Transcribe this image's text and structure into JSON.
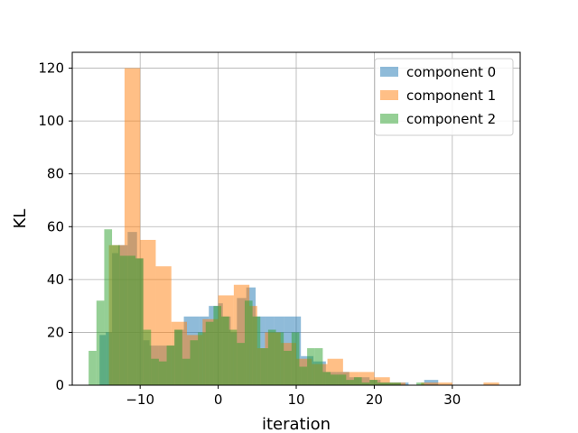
{
  "chart_data": {
    "type": "histogram",
    "title": "",
    "xlabel": "iteration",
    "ylabel": "KL",
    "xlim": [
      -18.7,
      38.7
    ],
    "ylim": [
      0,
      126
    ],
    "xticks": [
      -10,
      0,
      10,
      20,
      30
    ],
    "xtick_labels": [
      "−10",
      "0",
      "10",
      "20",
      "30"
    ],
    "yticks": [
      0,
      20,
      40,
      60,
      80,
      100,
      120
    ],
    "grid": true,
    "legend_position": "top-right",
    "series": [
      {
        "name": "component 0",
        "color": "#1f77b4",
        "opacity": 0.5,
        "bins": [
          [
            -16,
            -15.2,
            0
          ],
          [
            -15.2,
            -14.4,
            19
          ],
          [
            -14.4,
            -13.6,
            20
          ],
          [
            -13.6,
            -12.8,
            50
          ],
          [
            -12.8,
            -11.6,
            53
          ],
          [
            -11.6,
            -10.4,
            58
          ],
          [
            -10.4,
            -9.6,
            48
          ],
          [
            -9.6,
            -8.8,
            17
          ],
          [
            -8.8,
            -7.6,
            15
          ],
          [
            -7.6,
            -6.6,
            15
          ],
          [
            -6.6,
            -5.6,
            15
          ],
          [
            -5.6,
            -4.4,
            21
          ],
          [
            -4.4,
            -2.4,
            26
          ],
          [
            -2.4,
            -1.2,
            26
          ],
          [
            -1.2,
            0,
            30
          ],
          [
            0,
            0.6,
            31
          ],
          [
            0.6,
            1.6,
            26
          ],
          [
            1.6,
            2.4,
            20
          ],
          [
            2.4,
            3.6,
            33
          ],
          [
            3.6,
            4.8,
            37
          ],
          [
            4.8,
            6,
            26
          ],
          [
            6,
            7.2,
            26
          ],
          [
            7.2,
            8.4,
            26
          ],
          [
            8.4,
            9.8,
            26
          ],
          [
            9.8,
            10.6,
            26
          ],
          [
            10.6,
            12.2,
            11
          ],
          [
            12.2,
            13.8,
            9
          ],
          [
            13.8,
            15.2,
            5
          ],
          [
            15.2,
            16.8,
            5
          ],
          [
            16.8,
            18.2,
            3
          ],
          [
            18.2,
            19.4,
            3
          ],
          [
            19.4,
            20.8,
            2
          ],
          [
            20.8,
            22.2,
            1
          ],
          [
            22.2,
            24.4,
            1
          ],
          [
            24.4,
            26.4,
            0
          ],
          [
            26.4,
            28.2,
            2
          ]
        ]
      },
      {
        "name": "component 1",
        "color": "#ff7f0e",
        "opacity": 0.5,
        "bins": [
          [
            -14,
            -12,
            53
          ],
          [
            -12,
            -10,
            120
          ],
          [
            -10,
            -8,
            55
          ],
          [
            -8,
            -6,
            45
          ],
          [
            -6,
            -4,
            24
          ],
          [
            -4,
            -2,
            19
          ],
          [
            -2,
            0,
            25
          ],
          [
            0,
            2,
            34
          ],
          [
            2,
            4,
            38
          ],
          [
            4,
            5,
            30
          ],
          [
            5,
            6,
            14
          ],
          [
            6,
            8,
            20
          ],
          [
            8,
            10,
            16
          ],
          [
            10,
            12,
            10
          ],
          [
            12,
            14,
            8
          ],
          [
            14,
            16,
            10
          ],
          [
            16,
            18,
            5
          ],
          [
            18,
            20,
            5
          ],
          [
            20,
            22,
            3
          ],
          [
            22,
            24,
            1
          ],
          [
            24,
            26,
            0
          ],
          [
            26,
            28,
            1
          ],
          [
            28,
            30,
            1
          ],
          [
            30,
            32,
            0
          ],
          [
            32,
            34,
            0
          ],
          [
            34,
            36,
            1
          ]
        ]
      },
      {
        "name": "component 2",
        "color": "#2ca02c",
        "opacity": 0.5,
        "bins": [
          [
            -16.6,
            -15.6,
            13
          ],
          [
            -15.6,
            -14.6,
            32
          ],
          [
            -14.6,
            -13.6,
            59
          ],
          [
            -13.6,
            -12.6,
            53
          ],
          [
            -12.6,
            -11.6,
            49
          ],
          [
            -11.6,
            -10.6,
            49
          ],
          [
            -10.6,
            -9.6,
            48
          ],
          [
            -9.6,
            -8.6,
            21
          ],
          [
            -8.6,
            -7.6,
            10
          ],
          [
            -7.6,
            -6.6,
            9
          ],
          [
            -6.6,
            -5.6,
            15
          ],
          [
            -5.6,
            -4.6,
            21
          ],
          [
            -4.6,
            -3.6,
            10
          ],
          [
            -3.6,
            -2.6,
            17
          ],
          [
            -2.6,
            -1.6,
            20
          ],
          [
            -1.6,
            -0.6,
            24
          ],
          [
            -0.6,
            0.4,
            30
          ],
          [
            0.4,
            1.4,
            26
          ],
          [
            1.4,
            2.4,
            21
          ],
          [
            2.4,
            3.4,
            16
          ],
          [
            3.4,
            4.4,
            32
          ],
          [
            4.4,
            5.4,
            26
          ],
          [
            5.4,
            6.4,
            14
          ],
          [
            6.4,
            7.4,
            21
          ],
          [
            7.4,
            8.4,
            20
          ],
          [
            8.4,
            9.4,
            13
          ],
          [
            9.4,
            10.4,
            20
          ],
          [
            10.4,
            11.4,
            7
          ],
          [
            11.4,
            12.4,
            14
          ],
          [
            12.4,
            13.4,
            14
          ],
          [
            13.4,
            14.4,
            5
          ],
          [
            14.4,
            15.4,
            4
          ],
          [
            15.4,
            16.4,
            4
          ],
          [
            16.4,
            17.4,
            2
          ],
          [
            17.4,
            18.4,
            3
          ],
          [
            18.4,
            19.4,
            1
          ],
          [
            19.4,
            20.4,
            2
          ],
          [
            20.4,
            21.4,
            1
          ],
          [
            21.4,
            22.4,
            1
          ],
          [
            22.4,
            23.4,
            1
          ],
          [
            23.4,
            24.4,
            0
          ],
          [
            24.4,
            25.4,
            0
          ],
          [
            25.4,
            26.4,
            1
          ]
        ]
      }
    ]
  }
}
